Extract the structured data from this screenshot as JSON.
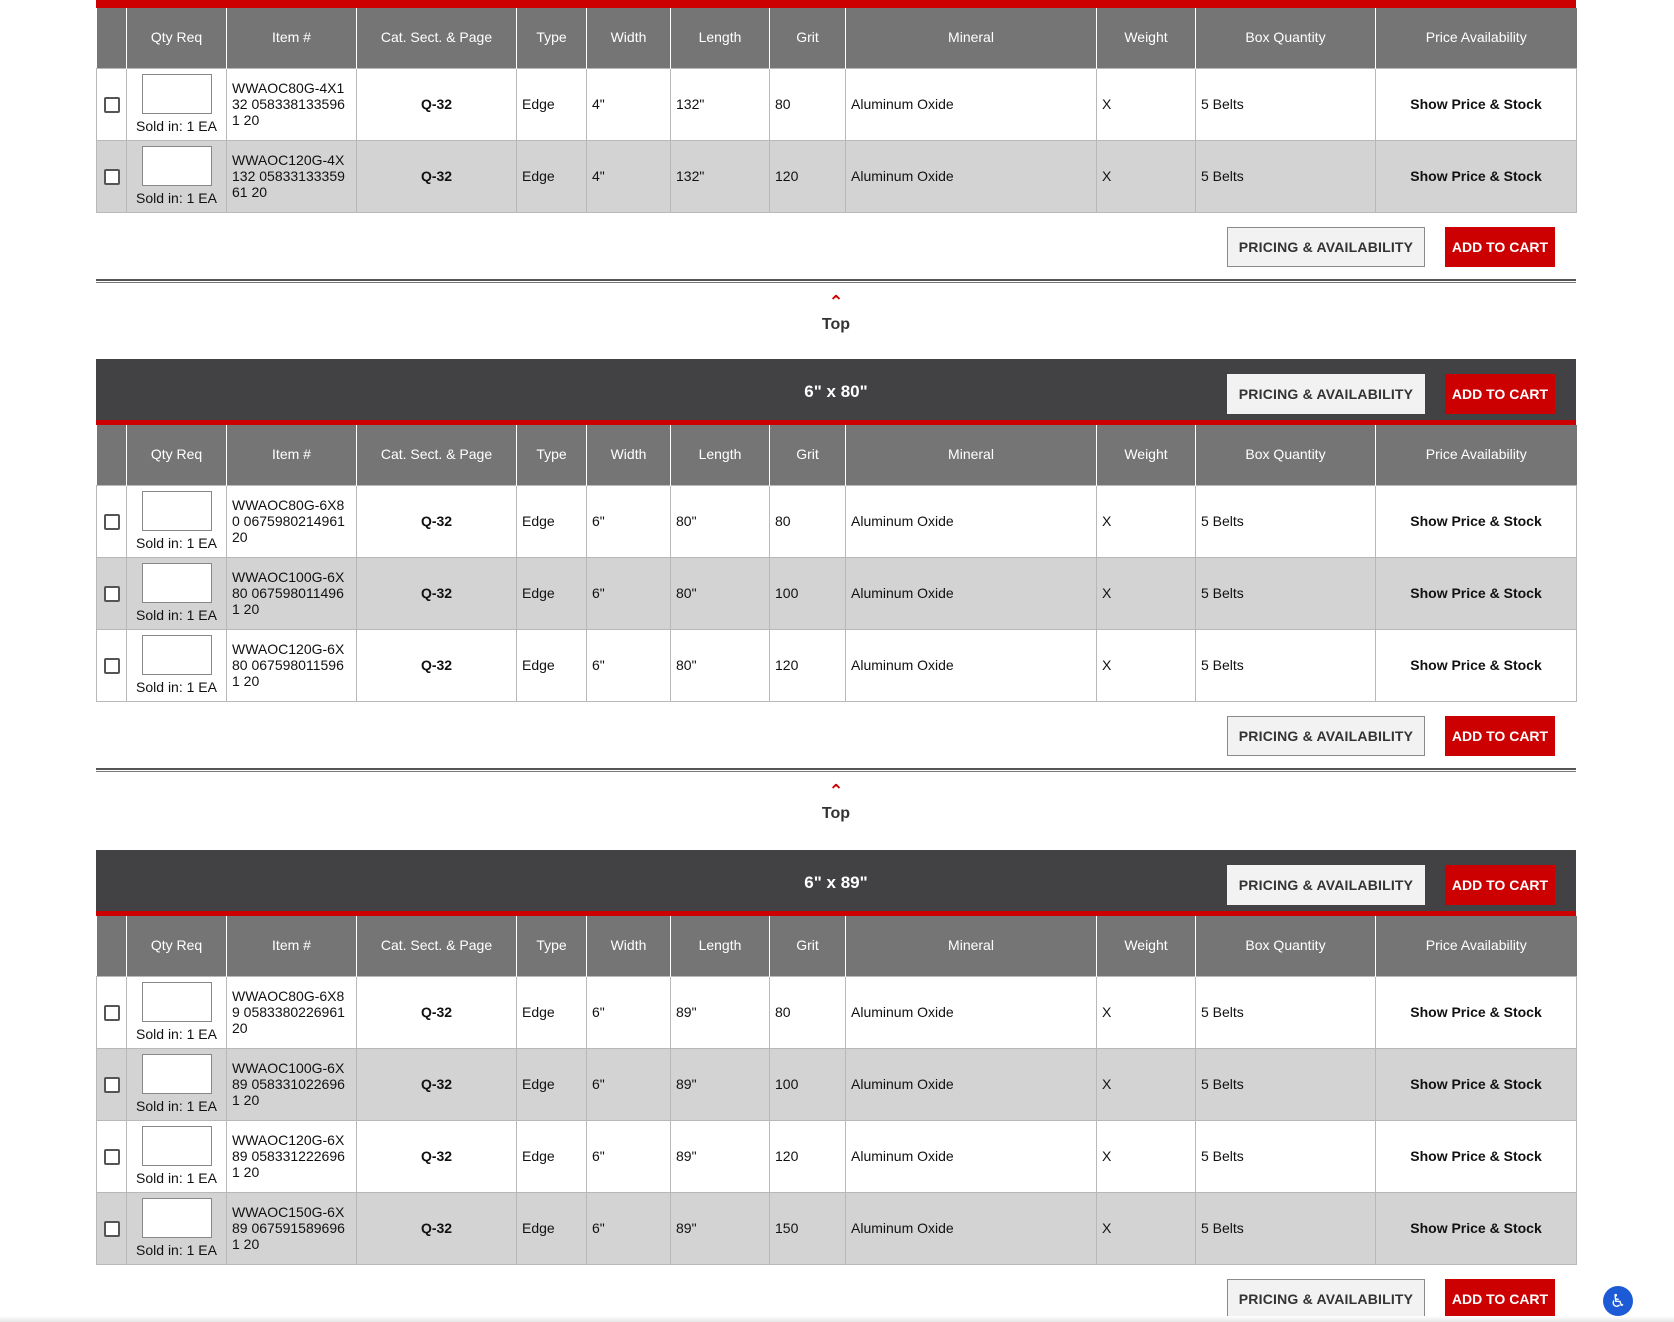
{
  "headers": {
    "qty": "Qty Req",
    "item": "Item #",
    "cat": "Cat. Sect. & Page",
    "type": "Type",
    "width": "Width",
    "length": "Length",
    "grit": "Grit",
    "mineral": "Mineral",
    "weight": "Weight",
    "box": "Box Quantity",
    "price": "Price Availability"
  },
  "buttons": {
    "pricing": "PRICING & AVAILABILITY",
    "cart": "ADD TO CART"
  },
  "top_link": "Top",
  "sold_in": "Sold in: 1 EA",
  "price_link": "Show Price & Stock",
  "accessibility_icon": "accessibility-icon",
  "groups": [
    {
      "title": "",
      "rows": [
        {
          "item": "WWAOC80G-4X132 0583381335961 20",
          "cat": "Q-32",
          "type": "Edge",
          "width": "4\"",
          "length": "132\"",
          "grit": "80",
          "mineral": "Aluminum Oxide",
          "weight": "X",
          "box": "5 Belts"
        },
        {
          "item": "WWAOC120G-4X132 0583313335961 20",
          "cat": "Q-32",
          "type": "Edge",
          "width": "4\"",
          "length": "132\"",
          "grit": "120",
          "mineral": "Aluminum Oxide",
          "weight": "X",
          "box": "5 Belts"
        }
      ]
    },
    {
      "title": "6\" x 80\"",
      "rows": [
        {
          "item": "WWAOC80G-6X80 0675980214961 20",
          "cat": "Q-32",
          "type": "Edge",
          "width": "6\"",
          "length": "80\"",
          "grit": "80",
          "mineral": "Aluminum Oxide",
          "weight": "X",
          "box": "5 Belts"
        },
        {
          "item": "WWAOC100G-6X80 0675980114961 20",
          "cat": "Q-32",
          "type": "Edge",
          "width": "6\"",
          "length": "80\"",
          "grit": "100",
          "mineral": "Aluminum Oxide",
          "weight": "X",
          "box": "5 Belts"
        },
        {
          "item": "WWAOC120G-6X80 0675980115961 20",
          "cat": "Q-32",
          "type": "Edge",
          "width": "6\"",
          "length": "80\"",
          "grit": "120",
          "mineral": "Aluminum Oxide",
          "weight": "X",
          "box": "5 Belts"
        }
      ]
    },
    {
      "title": "6\" x 89\"",
      "rows": [
        {
          "item": "WWAOC80G-6X89 0583380226961 20",
          "cat": "Q-32",
          "type": "Edge",
          "width": "6\"",
          "length": "89\"",
          "grit": "80",
          "mineral": "Aluminum Oxide",
          "weight": "X",
          "box": "5 Belts"
        },
        {
          "item": "WWAOC100G-6X89 0583310226961 20",
          "cat": "Q-32",
          "type": "Edge",
          "width": "6\"",
          "length": "89\"",
          "grit": "100",
          "mineral": "Aluminum Oxide",
          "weight": "X",
          "box": "5 Belts"
        },
        {
          "item": "WWAOC120G-6X89 0583312226961 20",
          "cat": "Q-32",
          "type": "Edge",
          "width": "6\"",
          "length": "89\"",
          "grit": "120",
          "mineral": "Aluminum Oxide",
          "weight": "X",
          "box": "5 Belts"
        },
        {
          "item": "WWAOC150G-6X89 0675915896961 20",
          "cat": "Q-32",
          "type": "Edge",
          "width": "6\"",
          "length": "89\"",
          "grit": "150",
          "mineral": "Aluminum Oxide",
          "weight": "X",
          "box": "5 Belts"
        }
      ]
    }
  ]
}
